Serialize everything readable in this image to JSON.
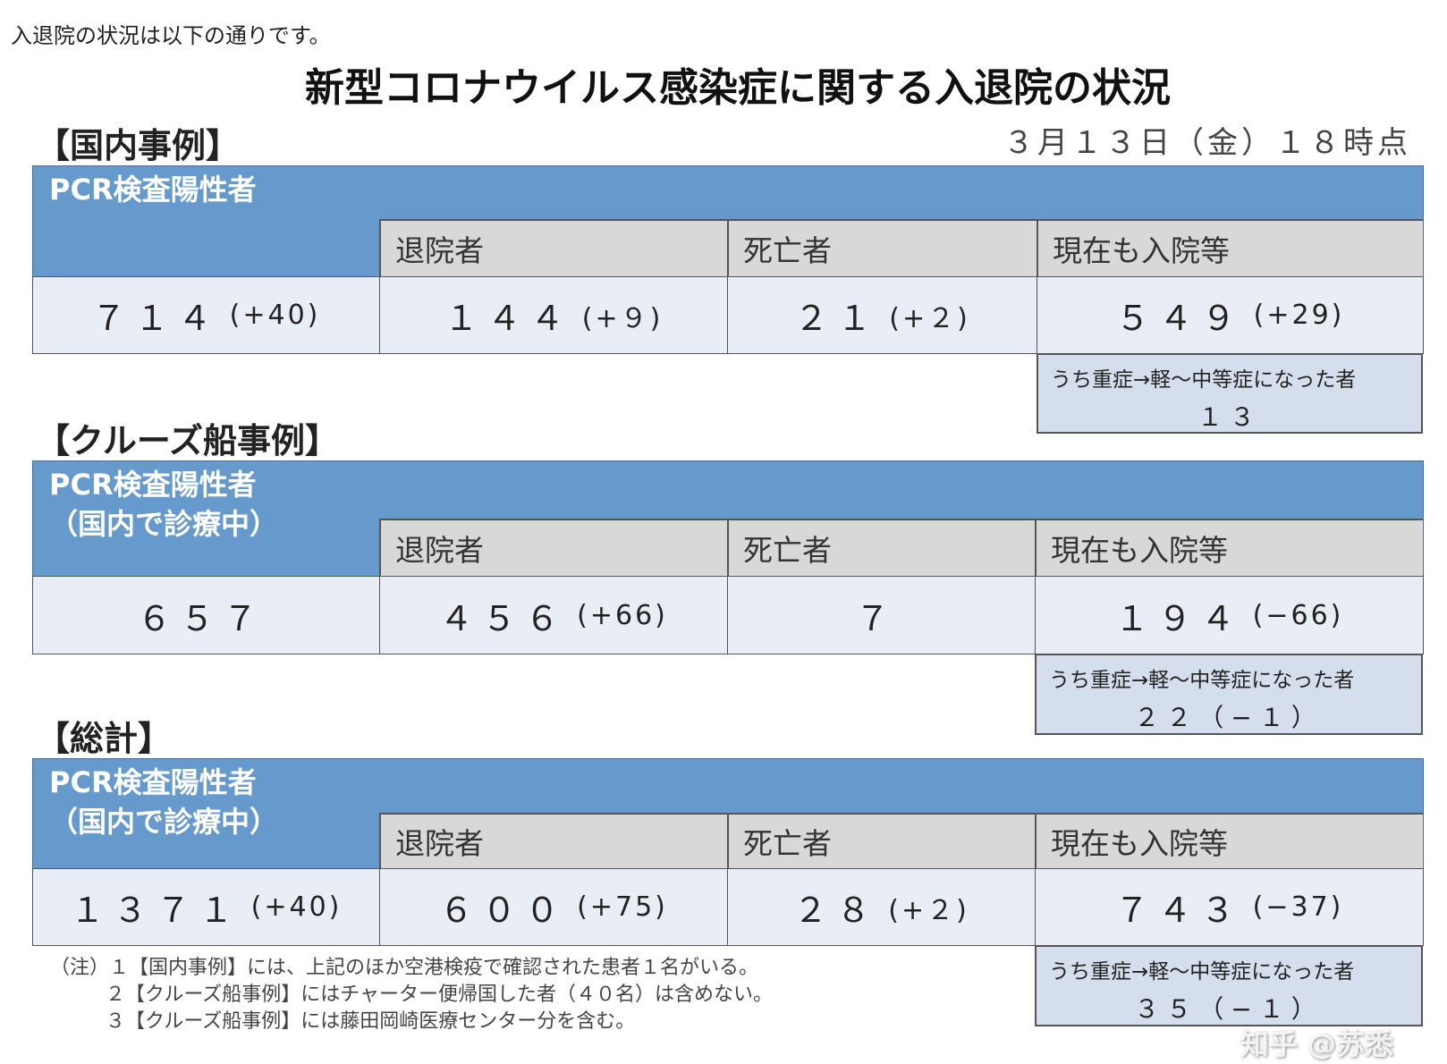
{
  "intro": "入退院の状況は以下の通りです。",
  "title": "新型コロナウイルス感染症に関する入退院の状況",
  "date": "３月１３日（金）１８時点",
  "columns": {
    "discharged": "退院者",
    "deaths": "死亡者",
    "hospitalized": "現在も入院等"
  },
  "subnote_label": "うち重症→軽～中等症になった者",
  "sections": [
    {
      "heading": "【国内事例】",
      "label": "PCR検査陽性者",
      "label2": "",
      "positive": "７１４",
      "positive_delta": "(+40)",
      "discharged": "１４４",
      "discharged_delta": "(+９)",
      "deaths": "２１",
      "deaths_delta": "(+２)",
      "hospitalized": "５４９",
      "hospitalized_delta": "(+29)",
      "severe_to_mild": "１３"
    },
    {
      "heading": "【クルーズ船事例】",
      "label": "PCR検査陽性者",
      "label2": "（国内で診療中）",
      "positive": "６５７",
      "positive_delta": "",
      "discharged": "４５６",
      "discharged_delta": "(+66)",
      "deaths": "７",
      "deaths_delta": "",
      "hospitalized": "１９４",
      "hospitalized_delta": "(−66)",
      "severe_to_mild": "２２（−１）"
    },
    {
      "heading": "【総計】",
      "label": "PCR検査陽性者",
      "label2": "（国内で診療中）",
      "positive": "１３７１",
      "positive_delta": "(+40)",
      "discharged": "６００",
      "discharged_delta": "(+75)",
      "deaths": "２８",
      "deaths_delta": "(+２)",
      "hospitalized": "７４３",
      "hospitalized_delta": "(−37)",
      "severe_to_mild": "３５（−１）"
    }
  ],
  "notes": [
    "（注）１【国内事例】には、上記のほか空港検疫で確認された患者１名がいる。",
    "２【クルーズ船事例】にはチャーター便帰国した者（４０名）は含めない。",
    "３【クルーズ船事例】には藤田岡崎医療センター分を含む。"
  ],
  "watermark": "知乎 @苏悉",
  "colors": {
    "header_blue": "#6699cc",
    "header_gray": "#d8d8d8",
    "cell": "#e9edf5",
    "subnote": "#d5deec"
  }
}
